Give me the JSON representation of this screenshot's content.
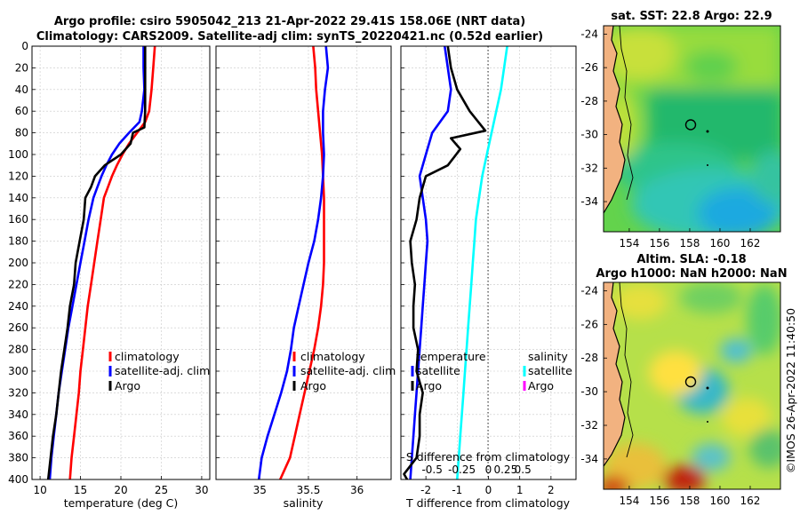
{
  "figure": {
    "title_line1": "Argo profile: csiro 5905042_213 21-Apr-2022 29.41S 158.06E (NRT data)",
    "title_line2": "Climatology: CARS2009. Satellite-adj clim: synTS_20220421.nc (0.52d earlier)",
    "watermark": "©IMOS 26-Apr-2022 11:40:50"
  },
  "colors": {
    "climatology": "#ff0000",
    "satellite": "#0000ff",
    "argo": "#000000",
    "salinity_sat": "#00ffff",
    "salinity_argo": "#ff00ff"
  },
  "chart_data": [
    {
      "type": "line",
      "title": "",
      "xlabel": "temperature (deg C)",
      "ylabel": "",
      "xlim": [
        9,
        31
      ],
      "ylim": [
        400,
        0
      ],
      "xticks": [
        10,
        15,
        20,
        25,
        30
      ],
      "yticks": [
        0,
        20,
        40,
        60,
        80,
        100,
        120,
        140,
        160,
        180,
        200,
        220,
        240,
        260,
        280,
        300,
        320,
        340,
        360,
        380,
        400
      ],
      "legend": [
        "climatology",
        "satellite-adj. clim",
        "Argo"
      ],
      "series": [
        {
          "name": "climatology",
          "color": "#ff0000",
          "x": [
            24.2,
            24.0,
            23.8,
            23.5,
            23.0,
            22.0,
            21.0,
            20.2,
            19.5,
            18.9,
            18.4,
            17.9,
            17.5,
            17.1,
            16.7,
            16.3,
            15.9,
            15.6,
            15.3,
            15.0,
            14.8,
            14.5,
            14.2,
            13.9,
            13.7
          ],
          "y": [
            0,
            20,
            40,
            60,
            70,
            80,
            90,
            100,
            110,
            120,
            130,
            140,
            160,
            180,
            200,
            220,
            240,
            260,
            280,
            300,
            320,
            340,
            360,
            380,
            400
          ]
        },
        {
          "name": "satellite-adj. clim",
          "color": "#0000ff",
          "x": [
            22.8,
            22.8,
            22.9,
            22.6,
            22.3,
            21.0,
            19.8,
            18.9,
            18.2,
            17.6,
            17.1,
            16.6,
            16.0,
            15.5,
            15.0,
            14.5,
            14.0,
            13.5,
            13.1,
            12.7,
            12.3,
            12.0,
            11.7,
            11.4,
            11.2
          ],
          "y": [
            0,
            20,
            40,
            60,
            70,
            80,
            90,
            100,
            110,
            120,
            130,
            140,
            160,
            180,
            200,
            220,
            240,
            260,
            280,
            300,
            320,
            340,
            360,
            380,
            400
          ]
        },
        {
          "name": "Argo",
          "color": "#000000",
          "x": [
            23.0,
            23.0,
            23.0,
            23.0,
            22.9,
            21.5,
            21.2,
            20.0,
            18.0,
            16.8,
            16.3,
            15.6,
            15.4,
            14.9,
            14.4,
            14.2,
            13.7,
            13.4,
            13.0,
            12.6,
            12.3,
            12.0,
            11.6,
            11.3,
            11.0
          ],
          "y": [
            0,
            20,
            40,
            60,
            75,
            80,
            90,
            100,
            110,
            120,
            130,
            140,
            160,
            180,
            200,
            220,
            240,
            260,
            280,
            300,
            320,
            340,
            360,
            380,
            400
          ]
        }
      ]
    },
    {
      "type": "line",
      "title": "",
      "xlabel": "salinity",
      "ylabel": "",
      "xlim": [
        34.55,
        36.35
      ],
      "ylim": [
        400,
        0
      ],
      "xticks": [
        35,
        35.5,
        36
      ],
      "legend": [
        "climatology",
        "satellite-adj. clim",
        "Argo"
      ],
      "series": [
        {
          "name": "climatology",
          "color": "#ff0000",
          "x": [
            35.55,
            35.57,
            35.58,
            35.6,
            35.62,
            35.64,
            35.65,
            35.66,
            35.66,
            35.66,
            35.66,
            35.65,
            35.63,
            35.6,
            35.56,
            35.51,
            35.46,
            35.41,
            35.36,
            35.31,
            35.26,
            35.21
          ],
          "y": [
            0,
            20,
            40,
            60,
            80,
            100,
            120,
            140,
            160,
            180,
            200,
            220,
            240,
            260,
            280,
            300,
            320,
            340,
            360,
            380,
            390,
            400
          ]
        },
        {
          "name": "satellite-adj. clim",
          "color": "#0000ff",
          "x": [
            35.68,
            35.7,
            35.67,
            35.65,
            35.65,
            35.66,
            35.65,
            35.63,
            35.6,
            35.56,
            35.5,
            35.45,
            35.4,
            35.35,
            35.32,
            35.28,
            35.22,
            35.15,
            35.08,
            35.02,
            34.99
          ],
          "y": [
            0,
            20,
            40,
            60,
            80,
            100,
            120,
            140,
            160,
            180,
            200,
            220,
            240,
            260,
            280,
            300,
            320,
            340,
            360,
            380,
            400
          ]
        },
        {
          "name": "Argo",
          "color": "#000000",
          "x": [],
          "y": []
        }
      ]
    },
    {
      "type": "line",
      "title": "",
      "xlabel": "T difference from climatology",
      "ylabel": "",
      "xlim": [
        -2.8,
        2.8
      ],
      "ylim": [
        400,
        0
      ],
      "xticks": [
        -2,
        -1,
        0,
        1,
        2
      ],
      "secondary_xlabel": "S difference from climatology",
      "secondary_xticks": [
        "-0.5",
        "-0.25",
        "0",
        "0.25",
        "0.5"
      ],
      "legend_left": [
        "temperature",
        "satellite",
        "Argo"
      ],
      "legend_right": [
        "salinity",
        "satellite",
        "Argo"
      ],
      "series": [
        {
          "name": "temperature satellite",
          "color": "#0000ff",
          "x": [
            -1.4,
            -1.3,
            -1.2,
            -1.3,
            -1.8,
            -2.0,
            -2.2,
            -2.1,
            -2.0,
            -1.95,
            -2.0,
            -2.05,
            -2.1,
            -2.15,
            -2.2,
            -2.25,
            -2.3,
            -2.35,
            -2.4,
            -2.45,
            -2.5
          ],
          "y": [
            0,
            20,
            40,
            60,
            80,
            100,
            120,
            140,
            160,
            180,
            200,
            220,
            240,
            260,
            280,
            300,
            320,
            340,
            360,
            380,
            400
          ]
        },
        {
          "name": "temperature Argo",
          "color": "#000000",
          "x": [
            -1.3,
            -1.2,
            -1.0,
            -0.6,
            -0.1,
            -1.2,
            -0.9,
            -1.3,
            -2.0,
            -2.2,
            -2.3,
            -2.5,
            -2.45,
            -2.35,
            -2.4,
            -2.4,
            -2.25,
            -2.3,
            -2.1,
            -2.2,
            -2.2,
            -2.3,
            -2.7,
            -2.6
          ],
          "y": [
            0,
            20,
            40,
            60,
            78,
            85,
            95,
            110,
            120,
            140,
            160,
            180,
            200,
            220,
            240,
            260,
            280,
            300,
            320,
            340,
            360,
            380,
            395,
            400
          ]
        },
        {
          "name": "salinity satellite",
          "color": "#00ffff",
          "x": [
            0.6,
            0.5,
            0.4,
            0.25,
            0.1,
            -0.05,
            -0.2,
            -0.3,
            -0.4,
            -0.45,
            -0.5,
            -0.55,
            -0.6,
            -0.65,
            -0.7,
            -0.75,
            -0.8,
            -0.85,
            -0.9,
            -0.95,
            -1.0
          ],
          "y": [
            0,
            20,
            40,
            60,
            80,
            100,
            120,
            140,
            160,
            180,
            200,
            220,
            240,
            260,
            280,
            300,
            320,
            340,
            360,
            380,
            400
          ]
        }
      ]
    },
    {
      "type": "heatmap",
      "title": "sat. SST: 22.8 Argo: 22.9",
      "xticks": [
        154,
        156,
        158,
        160,
        162
      ],
      "yticks": [
        -24,
        -26,
        -28,
        -30,
        -32,
        -34
      ],
      "xlim": [
        152.3,
        164.0
      ],
      "ylim": [
        -35.8,
        -23.5
      ],
      "argo_position": {
        "lon": 158.06,
        "lat": -29.41
      }
    },
    {
      "type": "heatmap",
      "title": "Altim. SLA: -0.18",
      "subtitle": "Argo h1000: NaN h2000: NaN",
      "xticks": [
        154,
        156,
        158,
        160,
        162
      ],
      "yticks": [
        -24,
        -26,
        -28,
        -30,
        -32,
        -34
      ],
      "xlim": [
        152.3,
        164.0
      ],
      "ylim": [
        -35.8,
        -23.5
      ],
      "argo_position": {
        "lon": 158.06,
        "lat": -29.41
      }
    }
  ]
}
